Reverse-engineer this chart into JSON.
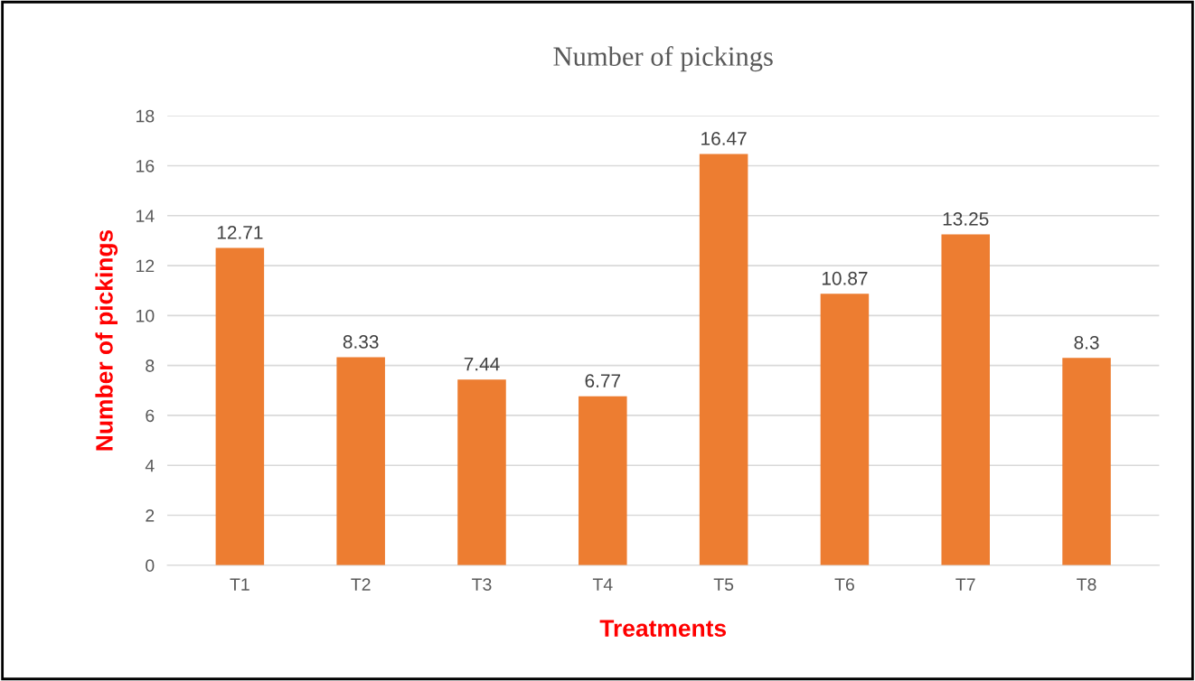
{
  "chart_data": {
    "type": "bar",
    "title": "Number of pickings",
    "xlabel": "Treatments",
    "ylabel": "Number of pickings",
    "categories": [
      "T1",
      "T2",
      "T3",
      "T4",
      "T5",
      "T6",
      "T7",
      "T8"
    ],
    "values": [
      12.71,
      8.33,
      7.44,
      6.77,
      16.47,
      10.87,
      13.25,
      8.3
    ],
    "color": "#ed7d31",
    "ylim": [
      0,
      18
    ],
    "yticks": [
      0,
      2,
      4,
      6,
      8,
      10,
      12,
      14,
      16,
      18
    ],
    "grid": "y",
    "data_labels": true
  }
}
